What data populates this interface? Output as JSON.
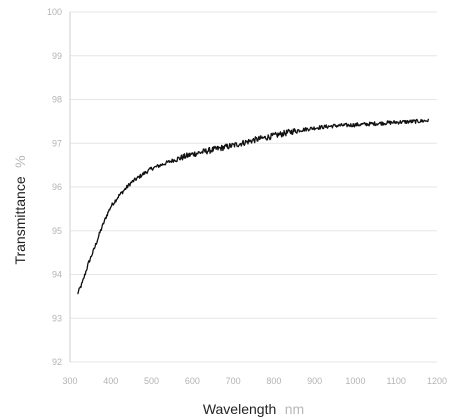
{
  "chart_data": {
    "type": "line",
    "xlabel": "Wavelength",
    "xunit": "nm",
    "ylabel": "Transmittance",
    "yunit": "%",
    "xlim": [
      300,
      1200
    ],
    "ylim": [
      92,
      100
    ],
    "xticks": [
      300,
      400,
      500,
      600,
      700,
      800,
      900,
      1000,
      1100,
      1200
    ],
    "yticks": [
      92,
      93,
      94,
      95,
      96,
      97,
      98,
      99,
      100
    ],
    "grid": "horizontal",
    "legend": "none",
    "series": [
      {
        "color": "#111111",
        "x": [
          318,
          330,
          345,
          360,
          375,
          390,
          400,
          420,
          450,
          480,
          500,
          550,
          600,
          650,
          700,
          750,
          800,
          850,
          900,
          950,
          1000,
          1050,
          1100,
          1150,
          1180
        ],
        "y": [
          93.55,
          93.8,
          94.25,
          94.6,
          95.0,
          95.35,
          95.55,
          95.8,
          96.1,
          96.3,
          96.42,
          96.6,
          96.75,
          96.85,
          96.95,
          97.07,
          97.17,
          97.28,
          97.35,
          97.4,
          97.42,
          97.45,
          97.48,
          97.5,
          97.52
        ]
      }
    ]
  }
}
